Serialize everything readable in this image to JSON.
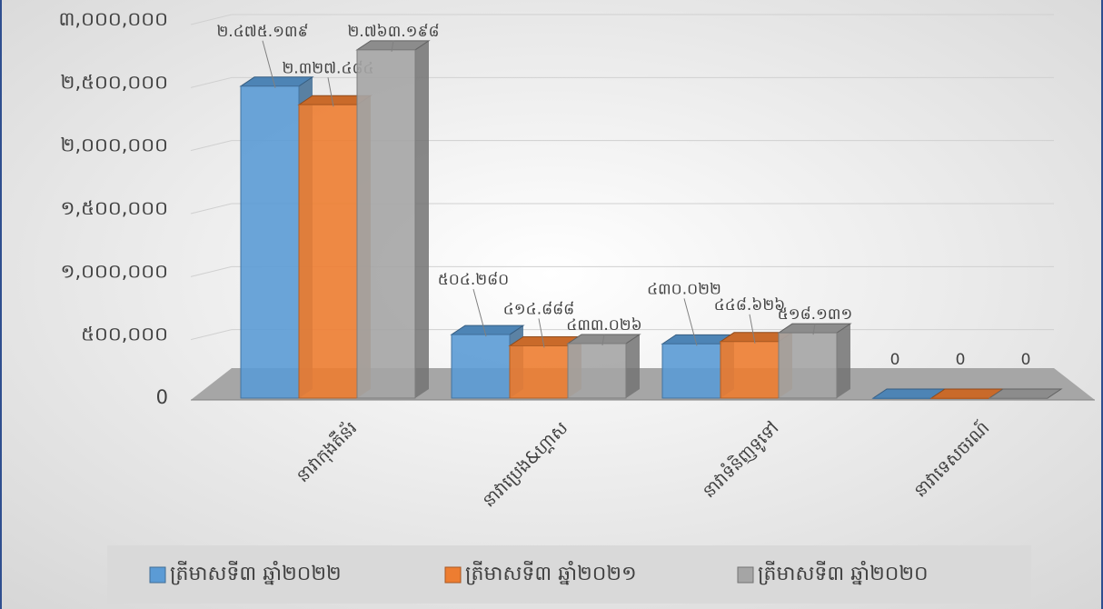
{
  "chart_data": {
    "type": "bar3d",
    "categories": [
      "នាវាកុងតឺន័រ",
      "នាវាប្រេង&ហ្គាស",
      "នាវាទំនិញទូទៅ",
      "នាវាទេសចរណ៍"
    ],
    "series": [
      {
        "name": "ត្រីមាសទី៣ ឆ្នាំ២០២២",
        "color": "#5b9bd5",
        "values": [
          2475139,
          504280,
          430022,
          0
        ],
        "value_labels": [
          "២.៤៧៥.១៣៩",
          "៥០៤.២៨០",
          "៤៣០.០២២",
          "0"
        ]
      },
      {
        "name": "ត្រីមាសទី៣ ឆ្នាំ២០២១",
        "color": "#ed7d31",
        "values": [
          2327484,
          414888,
          448626,
          0
        ],
        "value_labels": [
          "២.៣២៧.៤៨៤",
          "៤១៤.៨៨៨",
          "៤៤៨.៦២៦",
          "0"
        ]
      },
      {
        "name": "ត្រីមាសទី៣ ឆ្នាំ២០២០",
        "color": "#a5a5a5",
        "values": [
          2763198,
          433026,
          518131,
          0
        ],
        "value_labels": [
          "២.៧៦៣.១៩៨",
          "៤៣៣.០២៦",
          "៥១៨.១៣១",
          "0"
        ]
      }
    ],
    "ylim": [
      0,
      3000000
    ],
    "yticks": [
      0,
      {
        "value": 500000,
        "label": "៥០០,០០០"
      },
      {
        "value": 1000000,
        "label": "១,០០០,០០០"
      },
      {
        "value": 1500000,
        "label": "១,៥០០,០០០"
      },
      {
        "value": 2000000,
        "label": "២,០០០,០០០"
      },
      {
        "value": 2500000,
        "label": "២,៥០០,០០០"
      },
      {
        "value": 3000000,
        "label": "៣,០០០,០០០"
      }
    ],
    "grid": true,
    "legend": "bottom"
  }
}
